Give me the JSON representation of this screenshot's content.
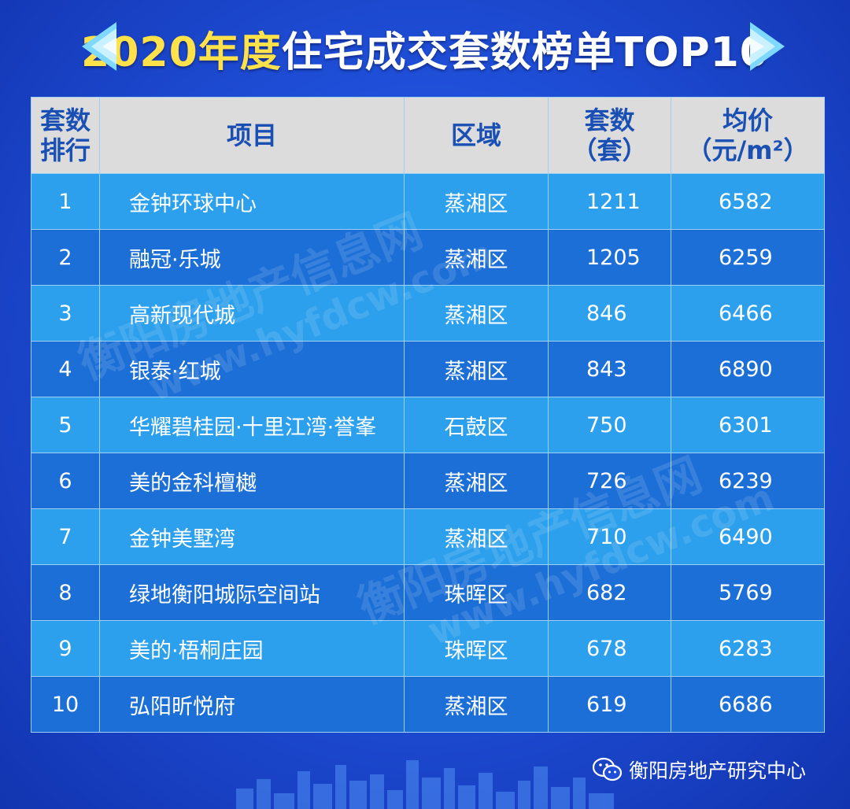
{
  "title": {
    "year": "2020年度",
    "rest": "住宅成交套数榜单TOP10"
  },
  "table": {
    "headers": {
      "rank_line1": "套数",
      "rank_line2": "排行",
      "project": "项目",
      "district": "区域",
      "units_line1": "套数",
      "units_line2": "（套）",
      "price_line1": "均价",
      "price_line2": "（元/m²）"
    },
    "rows": [
      {
        "rank": "1",
        "project": "金钟环球中心",
        "district": "蒸湘区",
        "units": "1211",
        "price": "6582"
      },
      {
        "rank": "2",
        "project": "融冠·乐城",
        "district": "蒸湘区",
        "units": "1205",
        "price": "6259"
      },
      {
        "rank": "3",
        "project": "高新现代城",
        "district": "蒸湘区",
        "units": "846",
        "price": "6466"
      },
      {
        "rank": "4",
        "project": "银泰·红城",
        "district": "蒸湘区",
        "units": "843",
        "price": "6890"
      },
      {
        "rank": "5",
        "project": "华耀碧桂园·十里江湾·誉峯",
        "district": "石鼓区",
        "units": "750",
        "price": "6301"
      },
      {
        "rank": "6",
        "project": "美的金科檀樾",
        "district": "蒸湘区",
        "units": "726",
        "price": "6239"
      },
      {
        "rank": "7",
        "project": "金钟美墅湾",
        "district": "蒸湘区",
        "units": "710",
        "price": "6490"
      },
      {
        "rank": "8",
        "project": "绿地衡阳城际空间站",
        "district": "珠晖区",
        "units": "682",
        "price": "5769"
      },
      {
        "rank": "9",
        "project": "美的·梧桐庄园",
        "district": "珠晖区",
        "units": "678",
        "price": "6283"
      },
      {
        "rank": "10",
        "project": "弘阳昕悦府",
        "district": "蒸湘区",
        "units": "619",
        "price": "6686"
      }
    ]
  },
  "watermark": {
    "line1": "衡阳房地产信息网",
    "line2": "www.hyfdcw.com"
  },
  "footer": {
    "text": "衡阳房地产研究中心",
    "icon": "wechat-icon"
  },
  "colors": {
    "background": "#1f4fd8",
    "title_year": "#ffe14a",
    "header_bg": "#dcdcdc",
    "header_text": "#1a4fb3",
    "row_light": "#2ca0ec",
    "row_dark": "#1c6fd6"
  }
}
